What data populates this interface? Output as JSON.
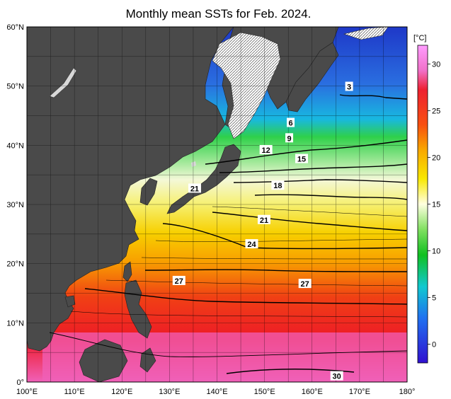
{
  "title": "Monthly mean SSTs for Feb. 2024.",
  "map": {
    "lat_labels": [
      "60°N",
      "50°N",
      "40°N",
      "30°N",
      "20°N",
      "10°N",
      "0°"
    ],
    "lon_labels": [
      "100°E",
      "110°E",
      "120°E",
      "130°E",
      "140°E",
      "150°E",
      "160°E",
      "170°E",
      "180°"
    ],
    "lat_range": [
      0,
      60
    ],
    "lon_range": [
      100,
      180
    ],
    "grid": true
  },
  "colorbar": {
    "unit": "[°C]",
    "ticks": [
      "30",
      "25",
      "20",
      "15",
      "10",
      "5",
      "0"
    ],
    "tick_values": [
      30,
      25,
      20,
      15,
      10,
      5,
      0
    ],
    "range": [
      -2,
      32
    ]
  },
  "contour_labels": [
    {
      "text": "3",
      "lon": 167.8,
      "lat": 49.9
    },
    {
      "text": "6",
      "lon": 155.5,
      "lat": 43.8
    },
    {
      "text": "9",
      "lon": 155.2,
      "lat": 41.2
    },
    {
      "text": "12",
      "lon": 150.3,
      "lat": 39.2
    },
    {
      "text": "15",
      "lon": 157.8,
      "lat": 37.7
    },
    {
      "text": "18",
      "lon": 152.8,
      "lat": 33.2
    },
    {
      "text": "21",
      "lon": 135.3,
      "lat": 32.7
    },
    {
      "text": "21",
      "lon": 149.9,
      "lat": 27.4
    },
    {
      "text": "24",
      "lon": 147.3,
      "lat": 23.3
    },
    {
      "text": "27",
      "lon": 132.0,
      "lat": 17.1
    },
    {
      "text": "27",
      "lon": 158.5,
      "lat": 16.6
    },
    {
      "text": "30",
      "lon": 165.2,
      "lat": 1.0
    }
  ],
  "colors": {
    "land": "#4a4a4a",
    "frame": "#000000"
  }
}
